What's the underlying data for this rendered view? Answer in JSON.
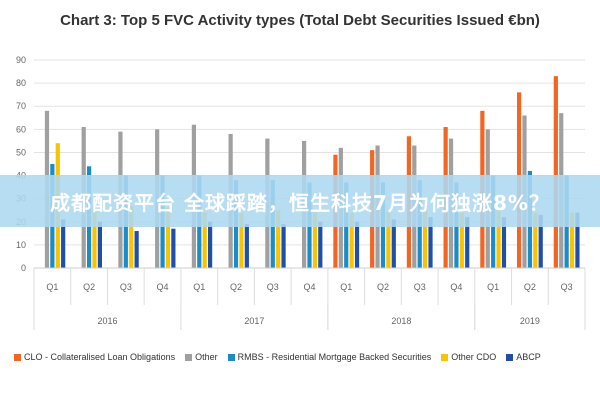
{
  "title": "Chart 3: Top 5 FVC Activity types (Total Debt Securities Issued €bn)",
  "banner_text": "成都配资平台 全球踩踏，恒生科技7月为何独涨8%？",
  "chart_data": {
    "type": "bar",
    "title": "Chart 3: Top 5 FVC Activity types (Total Debt Securities Issued €bn)",
    "ylim": [
      0,
      90
    ],
    "yticks": [
      0,
      10,
      20,
      30,
      40,
      50,
      60,
      70,
      80,
      90
    ],
    "grid": true,
    "legend_position": "bottom",
    "categories": [
      "Q1",
      "Q2",
      "Q3",
      "Q4",
      "Q1",
      "Q2",
      "Q3",
      "Q4",
      "Q1",
      "Q2",
      "Q3",
      "Q4",
      "Q1",
      "Q2",
      "Q3"
    ],
    "year_groups": [
      {
        "label": "2016",
        "start": 0,
        "end": 3
      },
      {
        "label": "2017",
        "start": 4,
        "end": 7
      },
      {
        "label": "2018",
        "start": 8,
        "end": 11
      },
      {
        "label": "2019",
        "start": 12,
        "end": 14
      }
    ],
    "series": [
      {
        "name": "CLO - Collateralised Loan Obligations",
        "color": "#f26522",
        "values": [
          0,
          0,
          0,
          0,
          0,
          0,
          0,
          0,
          49,
          51,
          57,
          61,
          68,
          76,
          83
        ]
      },
      {
        "name": "Other",
        "color": "#a0a0a0",
        "values": [
          68,
          61,
          59,
          60,
          62,
          58,
          56,
          55,
          52,
          53,
          53,
          56,
          60,
          66,
          67
        ]
      },
      {
        "name": "RMBS - Residential Mortgage Backed Securities",
        "color": "#1a8cc8",
        "values": [
          45,
          44,
          40,
          40,
          40,
          38,
          38,
          37,
          37,
          37,
          38,
          37,
          40,
          42,
          40
        ]
      },
      {
        "name": "Other CDO",
        "color": "#f9c300",
        "values": [
          54,
          26,
          27,
          26,
          24,
          24,
          25,
          25,
          24,
          24,
          25,
          24,
          25,
          24,
          24
        ]
      },
      {
        "name": "ABCP",
        "color": "#1f4fa8",
        "values": [
          21,
          20,
          16,
          17,
          20,
          19,
          19,
          20,
          20,
          21,
          22,
          22,
          22,
          23,
          24
        ]
      }
    ]
  }
}
